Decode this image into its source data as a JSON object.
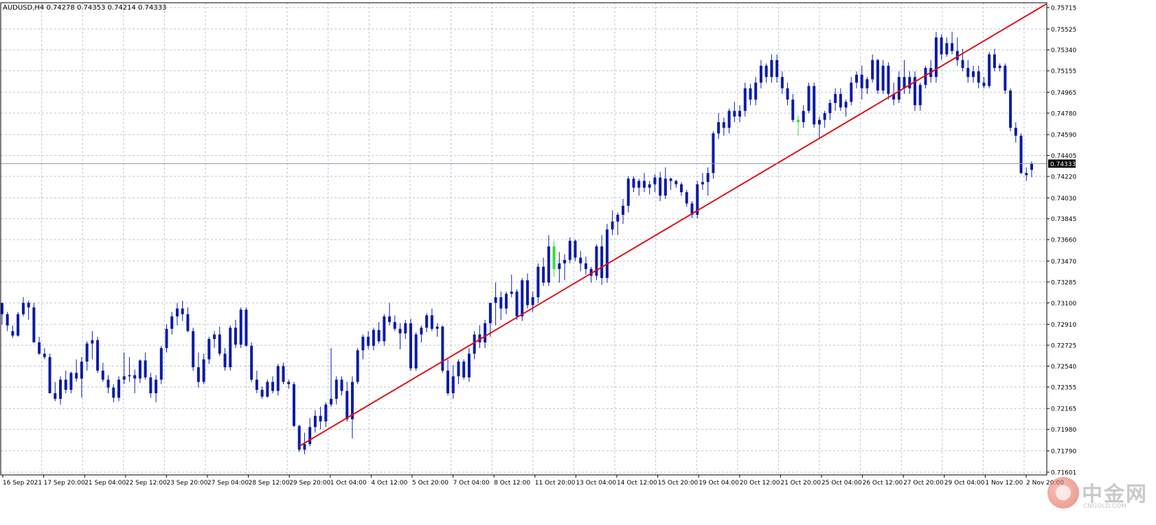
{
  "header": {
    "title": "AUDUSD,H4  0.74278 0.74353 0.74214 0.74333"
  },
  "watermark": {
    "name": "中金网",
    "url": "CNGOLD.COM"
  },
  "chart_data": {
    "type": "candlestick",
    "title": "AUDUSD,H4  0.74278 0.74353 0.74214 0.74333",
    "symbol": "AUDUSD",
    "timeframe": "H4",
    "last_price": 0.74333,
    "last_price_label": "0.74333",
    "ylim": [
      0.71601,
      0.75715
    ],
    "y_ticks": [
      "0.75715",
      "0.75525",
      "0.75340",
      "0.75155",
      "0.74965",
      "0.74780",
      "0.74590",
      "0.74405",
      "0.74220",
      "0.74030",
      "0.73845",
      "0.73660",
      "0.73470",
      "0.73285",
      "0.73100",
      "0.72910",
      "0.72725",
      "0.72540",
      "0.72355",
      "0.72165",
      "0.71980",
      "0.71790",
      "0.71601"
    ],
    "x_labels": [
      "16 Sep 2021",
      "17 Sep 20:00",
      "21 Sep 04:00",
      "22 Sep 12:00",
      "23 Sep 20:00",
      "27 Sep 04:00",
      "28 Sep 12:00",
      "29 Sep 20:00",
      "1 Oct 04:00",
      "4 Oct 12:00",
      "5 Oct 20:00",
      "7 Oct 04:00",
      "8 Oct 12:00",
      "11 Oct 20:00",
      "13 Oct 04:00",
      "14 Oct 12:00",
      "15 Oct 20:00",
      "19 Oct 04:00",
      "20 Oct 12:00",
      "21 Oct 20:00",
      "25 Oct 04:00",
      "26 Oct 12:00",
      "27 Oct 20:00",
      "29 Oct 04:00",
      "1 Nov 12:00",
      "2 Nov 20:00"
    ],
    "grid": true,
    "colors": {
      "candle": "#0a1aa6",
      "candle_alt": "#33e033",
      "trendline": "#e01010",
      "grid": "#b8c4d0",
      "current_price_line": "#8c96a8",
      "axis_text": "#000000"
    },
    "trendline": {
      "start": [
        0.7189,
        "29 Sep 20:00"
      ],
      "end": [
        0.75715,
        "2 Nov 20:00"
      ]
    },
    "candles": [
      [
        0.731,
        0.7308,
        0.7291,
        0.73
      ],
      [
        0.73,
        0.7302,
        0.7285,
        0.729
      ],
      [
        0.7285,
        0.729,
        0.7279,
        0.7281
      ],
      [
        0.7281,
        0.7302,
        0.728,
        0.73
      ],
      [
        0.73,
        0.7315,
        0.7298,
        0.731
      ],
      [
        0.731,
        0.7312,
        0.7295,
        0.7306
      ],
      [
        0.7306,
        0.731,
        0.7275,
        0.7275
      ],
      [
        0.7275,
        0.728,
        0.7264,
        0.7265
      ],
      [
        0.7265,
        0.727,
        0.726,
        0.7262
      ],
      [
        0.7262,
        0.7265,
        0.723,
        0.723
      ],
      [
        0.723,
        0.724,
        0.7223,
        0.7225
      ],
      [
        0.7225,
        0.7245,
        0.722,
        0.7242
      ],
      [
        0.7242,
        0.725,
        0.723,
        0.7233
      ],
      [
        0.7233,
        0.7249,
        0.723,
        0.7248
      ],
      [
        0.7248,
        0.726,
        0.724,
        0.7243
      ],
      [
        0.7243,
        0.7262,
        0.7226,
        0.7258
      ],
      [
        0.7258,
        0.7276,
        0.725,
        0.7274
      ],
      [
        0.7274,
        0.7285,
        0.726,
        0.7277
      ],
      [
        0.7277,
        0.728,
        0.7248,
        0.725
      ],
      [
        0.725,
        0.7257,
        0.724,
        0.7242
      ],
      [
        0.7242,
        0.7246,
        0.723,
        0.7235
      ],
      [
        0.7235,
        0.7238,
        0.7222,
        0.7226
      ],
      [
        0.7226,
        0.7245,
        0.7223,
        0.7242
      ],
      [
        0.7242,
        0.7266,
        0.7238,
        0.7245
      ],
      [
        0.7245,
        0.7262,
        0.724,
        0.7246
      ],
      [
        0.7246,
        0.7251,
        0.723,
        0.7243
      ],
      [
        0.7243,
        0.726,
        0.7239,
        0.7259
      ],
      [
        0.7259,
        0.7266,
        0.7242,
        0.7244
      ],
      [
        0.7244,
        0.7248,
        0.7226,
        0.723
      ],
      [
        0.723,
        0.7246,
        0.7222,
        0.7242
      ],
      [
        0.7242,
        0.7272,
        0.7238,
        0.727
      ],
      [
        0.727,
        0.7291,
        0.7266,
        0.7287
      ],
      [
        0.7287,
        0.7302,
        0.7282,
        0.7298
      ],
      [
        0.7298,
        0.731,
        0.729,
        0.7305
      ],
      [
        0.7305,
        0.7312,
        0.7294,
        0.73
      ],
      [
        0.73,
        0.7306,
        0.7284,
        0.7285
      ],
      [
        0.7285,
        0.7288,
        0.725,
        0.7253
      ],
      [
        0.7253,
        0.7266,
        0.7235,
        0.724
      ],
      [
        0.724,
        0.7265,
        0.7238,
        0.726
      ],
      [
        0.726,
        0.728,
        0.7256,
        0.7278
      ],
      [
        0.7278,
        0.7285,
        0.727,
        0.7282
      ],
      [
        0.7282,
        0.7289,
        0.7263,
        0.7265
      ],
      [
        0.7265,
        0.727,
        0.725,
        0.7253
      ],
      [
        0.7253,
        0.729,
        0.725,
        0.7288
      ],
      [
        0.7288,
        0.7295,
        0.727,
        0.7273
      ],
      [
        0.7273,
        0.7306,
        0.727,
        0.7304
      ],
      [
        0.7304,
        0.7306,
        0.7271,
        0.7272
      ],
      [
        0.7272,
        0.7275,
        0.724,
        0.7242
      ],
      [
        0.7242,
        0.725,
        0.723,
        0.7233
      ],
      [
        0.7233,
        0.7236,
        0.7225,
        0.7227
      ],
      [
        0.7227,
        0.7242,
        0.7226,
        0.724
      ],
      [
        0.724,
        0.7245,
        0.723,
        0.7232
      ],
      [
        0.7232,
        0.7256,
        0.7228,
        0.7254
      ],
      [
        0.7254,
        0.7257,
        0.7238,
        0.724
      ],
      [
        0.724,
        0.7242,
        0.7234,
        0.7238
      ],
      [
        0.7238,
        0.724,
        0.72,
        0.7201
      ],
      [
        0.7201,
        0.7202,
        0.7178,
        0.718
      ],
      [
        0.718,
        0.7195,
        0.7176,
        0.7185
      ],
      [
        0.7185,
        0.7208,
        0.7183,
        0.72
      ],
      [
        0.72,
        0.7215,
        0.7195,
        0.721
      ],
      [
        0.721,
        0.7218,
        0.7198,
        0.7205
      ],
      [
        0.7205,
        0.7222,
        0.72,
        0.722
      ],
      [
        0.722,
        0.727,
        0.7218,
        0.7225
      ],
      [
        0.7225,
        0.7245,
        0.722,
        0.7242
      ],
      [
        0.7242,
        0.7245,
        0.7228,
        0.7232
      ],
      [
        0.7232,
        0.724,
        0.7205,
        0.7207
      ],
      [
        0.7207,
        0.7245,
        0.719,
        0.724
      ],
      [
        0.724,
        0.727,
        0.7238,
        0.7268
      ],
      [
        0.7268,
        0.7282,
        0.726,
        0.728
      ],
      [
        0.728,
        0.7285,
        0.7269,
        0.7272
      ],
      [
        0.7272,
        0.7288,
        0.7268,
        0.7286
      ],
      [
        0.7286,
        0.7293,
        0.7274,
        0.7276
      ],
      [
        0.7276,
        0.73,
        0.7272,
        0.7298
      ],
      [
        0.7298,
        0.731,
        0.729,
        0.7293
      ],
      [
        0.7293,
        0.7299,
        0.7285,
        0.7287
      ],
      [
        0.7287,
        0.7292,
        0.7269,
        0.7283
      ],
      [
        0.7283,
        0.7295,
        0.7278,
        0.7292
      ],
      [
        0.7292,
        0.7296,
        0.725,
        0.7252
      ],
      [
        0.7252,
        0.7284,
        0.725,
        0.7282
      ],
      [
        0.7282,
        0.729,
        0.7275,
        0.7288
      ],
      [
        0.7288,
        0.7301,
        0.7284,
        0.7299
      ],
      [
        0.7299,
        0.7305,
        0.7285,
        0.7287
      ],
      [
        0.7287,
        0.7292,
        0.728,
        0.7289
      ],
      [
        0.7289,
        0.729,
        0.7248,
        0.725
      ],
      [
        0.725,
        0.726,
        0.7228,
        0.723
      ],
      [
        0.723,
        0.7255,
        0.7225,
        0.7245
      ],
      [
        0.7245,
        0.726,
        0.7238,
        0.7258
      ],
      [
        0.7258,
        0.726,
        0.7242,
        0.7244
      ],
      [
        0.7244,
        0.727,
        0.724,
        0.7265
      ],
      [
        0.7265,
        0.7285,
        0.726,
        0.7282
      ],
      [
        0.7282,
        0.729,
        0.727,
        0.7275
      ],
      [
        0.7275,
        0.7295,
        0.727,
        0.7292
      ],
      [
        0.7292,
        0.731,
        0.728,
        0.731
      ],
      [
        0.731,
        0.7328,
        0.729,
        0.7315
      ],
      [
        0.7315,
        0.732,
        0.7295,
        0.7305
      ],
      [
        0.7305,
        0.732,
        0.73,
        0.7318
      ],
      [
        0.7318,
        0.7335,
        0.7315,
        0.732
      ],
      [
        0.732,
        0.7322,
        0.7295,
        0.7298
      ],
      [
        0.7298,
        0.7332,
        0.7294,
        0.733
      ],
      [
        0.733,
        0.7336,
        0.7305,
        0.7308
      ],
      [
        0.7308,
        0.732,
        0.7302,
        0.7315
      ],
      [
        0.7315,
        0.7345,
        0.731,
        0.7342
      ],
      [
        0.7342,
        0.735,
        0.7325,
        0.7328
      ],
      [
        0.7328,
        0.737,
        0.7325,
        0.736
      ],
      [
        0.736,
        0.7365,
        0.7333,
        0.734
      ],
      [
        0.734,
        0.7355,
        0.7328,
        0.7345
      ],
      [
        0.7345,
        0.7353,
        0.733,
        0.7348
      ],
      [
        0.7348,
        0.7368,
        0.7345,
        0.7365
      ],
      [
        0.7365,
        0.7366,
        0.7347,
        0.735
      ],
      [
        0.735,
        0.7356,
        0.7338,
        0.7345
      ],
      [
        0.7345,
        0.7351,
        0.7335,
        0.734
      ],
      [
        0.734,
        0.7342,
        0.7328,
        0.7334
      ],
      [
        0.7334,
        0.7362,
        0.733,
        0.736
      ],
      [
        0.736,
        0.737,
        0.7326,
        0.7332
      ],
      [
        0.7332,
        0.738,
        0.7328,
        0.7375
      ],
      [
        0.7375,
        0.7392,
        0.737,
        0.7382
      ],
      [
        0.7382,
        0.739,
        0.737,
        0.7388
      ],
      [
        0.7388,
        0.7402,
        0.738,
        0.7396
      ],
      [
        0.7396,
        0.7422,
        0.739,
        0.742
      ],
      [
        0.742,
        0.7422,
        0.7408,
        0.7412
      ],
      [
        0.7412,
        0.742,
        0.7405,
        0.7418
      ],
      [
        0.7418,
        0.7425,
        0.7408,
        0.7412
      ],
      [
        0.7412,
        0.7418,
        0.7406,
        0.7415
      ],
      [
        0.7415,
        0.7424,
        0.7408,
        0.7421
      ],
      [
        0.7421,
        0.7426,
        0.74,
        0.7405
      ],
      [
        0.7405,
        0.743,
        0.7402,
        0.742
      ],
      [
        0.742,
        0.7421,
        0.741,
        0.7418
      ],
      [
        0.7418,
        0.7419,
        0.7412,
        0.7415
      ],
      [
        0.7415,
        0.7417,
        0.7405,
        0.7408
      ],
      [
        0.7408,
        0.741,
        0.7395,
        0.7398
      ],
      [
        0.7398,
        0.74,
        0.7385,
        0.7388
      ],
      [
        0.7388,
        0.7418,
        0.7385,
        0.7415
      ],
      [
        0.7415,
        0.7425,
        0.741,
        0.7417
      ],
      [
        0.7417,
        0.743,
        0.7405,
        0.7425
      ],
      [
        0.7425,
        0.7462,
        0.742,
        0.746
      ],
      [
        0.746,
        0.7478,
        0.7455,
        0.747
      ],
      [
        0.747,
        0.7474,
        0.7458,
        0.7465
      ],
      [
        0.7465,
        0.7482,
        0.746,
        0.748
      ],
      [
        0.748,
        0.7488,
        0.747,
        0.7475
      ],
      [
        0.7475,
        0.7485,
        0.747,
        0.748
      ],
      [
        0.748,
        0.7505,
        0.7475,
        0.75
      ],
      [
        0.75,
        0.7504,
        0.7485,
        0.749
      ],
      [
        0.749,
        0.751,
        0.7485,
        0.7505
      ],
      [
        0.7505,
        0.7525,
        0.75,
        0.752
      ],
      [
        0.752,
        0.7522,
        0.7505,
        0.751
      ],
      [
        0.751,
        0.753,
        0.7505,
        0.7525
      ],
      [
        0.7525,
        0.753,
        0.7505,
        0.751
      ],
      [
        0.751,
        0.7515,
        0.7495,
        0.75
      ],
      [
        0.75,
        0.7505,
        0.7485,
        0.749
      ],
      [
        0.749,
        0.7495,
        0.747,
        0.7472
      ],
      [
        0.7472,
        0.7476,
        0.7458,
        0.747
      ],
      [
        0.747,
        0.7485,
        0.7465,
        0.748
      ],
      [
        0.748,
        0.7505,
        0.7478,
        0.7502
      ],
      [
        0.7502,
        0.7505,
        0.7465,
        0.7468
      ],
      [
        0.7468,
        0.7475,
        0.7455,
        0.7472
      ],
      [
        0.7472,
        0.748,
        0.7465,
        0.7478
      ],
      [
        0.7478,
        0.749,
        0.7472,
        0.7487
      ],
      [
        0.7487,
        0.75,
        0.748,
        0.7495
      ],
      [
        0.7495,
        0.75,
        0.748,
        0.7483
      ],
      [
        0.7483,
        0.749,
        0.7475,
        0.7488
      ],
      [
        0.7488,
        0.751,
        0.7485,
        0.7505
      ],
      [
        0.7505,
        0.7515,
        0.75,
        0.7512
      ],
      [
        0.7512,
        0.752,
        0.749,
        0.75
      ],
      [
        0.75,
        0.751,
        0.7495,
        0.7508
      ],
      [
        0.7508,
        0.753,
        0.7505,
        0.7525
      ],
      [
        0.7525,
        0.7526,
        0.7495,
        0.7498
      ],
      [
        0.7498,
        0.7525,
        0.7495,
        0.752
      ],
      [
        0.752,
        0.7523,
        0.749,
        0.7495
      ],
      [
        0.7495,
        0.7505,
        0.7485,
        0.749
      ],
      [
        0.749,
        0.7515,
        0.7487,
        0.751
      ],
      [
        0.751,
        0.7525,
        0.7495,
        0.75
      ],
      [
        0.75,
        0.7515,
        0.7495,
        0.751
      ],
      [
        0.751,
        0.7515,
        0.748,
        0.7485
      ],
      [
        0.7485,
        0.7505,
        0.748,
        0.7503
      ],
      [
        0.7503,
        0.752,
        0.75,
        0.7518
      ],
      [
        0.7518,
        0.7525,
        0.7505,
        0.751
      ],
      [
        0.751,
        0.755,
        0.7505,
        0.7545
      ],
      [
        0.7545,
        0.7548,
        0.7525,
        0.753
      ],
      [
        0.753,
        0.7545,
        0.7528,
        0.754
      ],
      [
        0.754,
        0.755,
        0.753,
        0.7533
      ],
      [
        0.7533,
        0.7545,
        0.752,
        0.7525
      ],
      [
        0.7525,
        0.7535,
        0.7515,
        0.7518
      ],
      [
        0.7518,
        0.7525,
        0.7505,
        0.751
      ],
      [
        0.751,
        0.752,
        0.7505,
        0.7515
      ],
      [
        0.7515,
        0.752,
        0.75,
        0.7505
      ],
      [
        0.7505,
        0.751,
        0.75,
        0.7502
      ],
      [
        0.7502,
        0.7532,
        0.75,
        0.753
      ],
      [
        0.753,
        0.7535,
        0.7515,
        0.7518
      ],
      [
        0.7518,
        0.7522,
        0.7515,
        0.752
      ],
      [
        0.752,
        0.7522,
        0.7495,
        0.7498
      ],
      [
        0.7498,
        0.75,
        0.7462,
        0.7465
      ],
      [
        0.7465,
        0.747,
        0.7452,
        0.7458
      ],
      [
        0.7458,
        0.746,
        0.7424,
        0.7425
      ],
      [
        0.7425,
        0.743,
        0.7418,
        0.7423
      ],
      [
        0.74278,
        0.74353,
        0.74214,
        0.74333
      ]
    ]
  }
}
